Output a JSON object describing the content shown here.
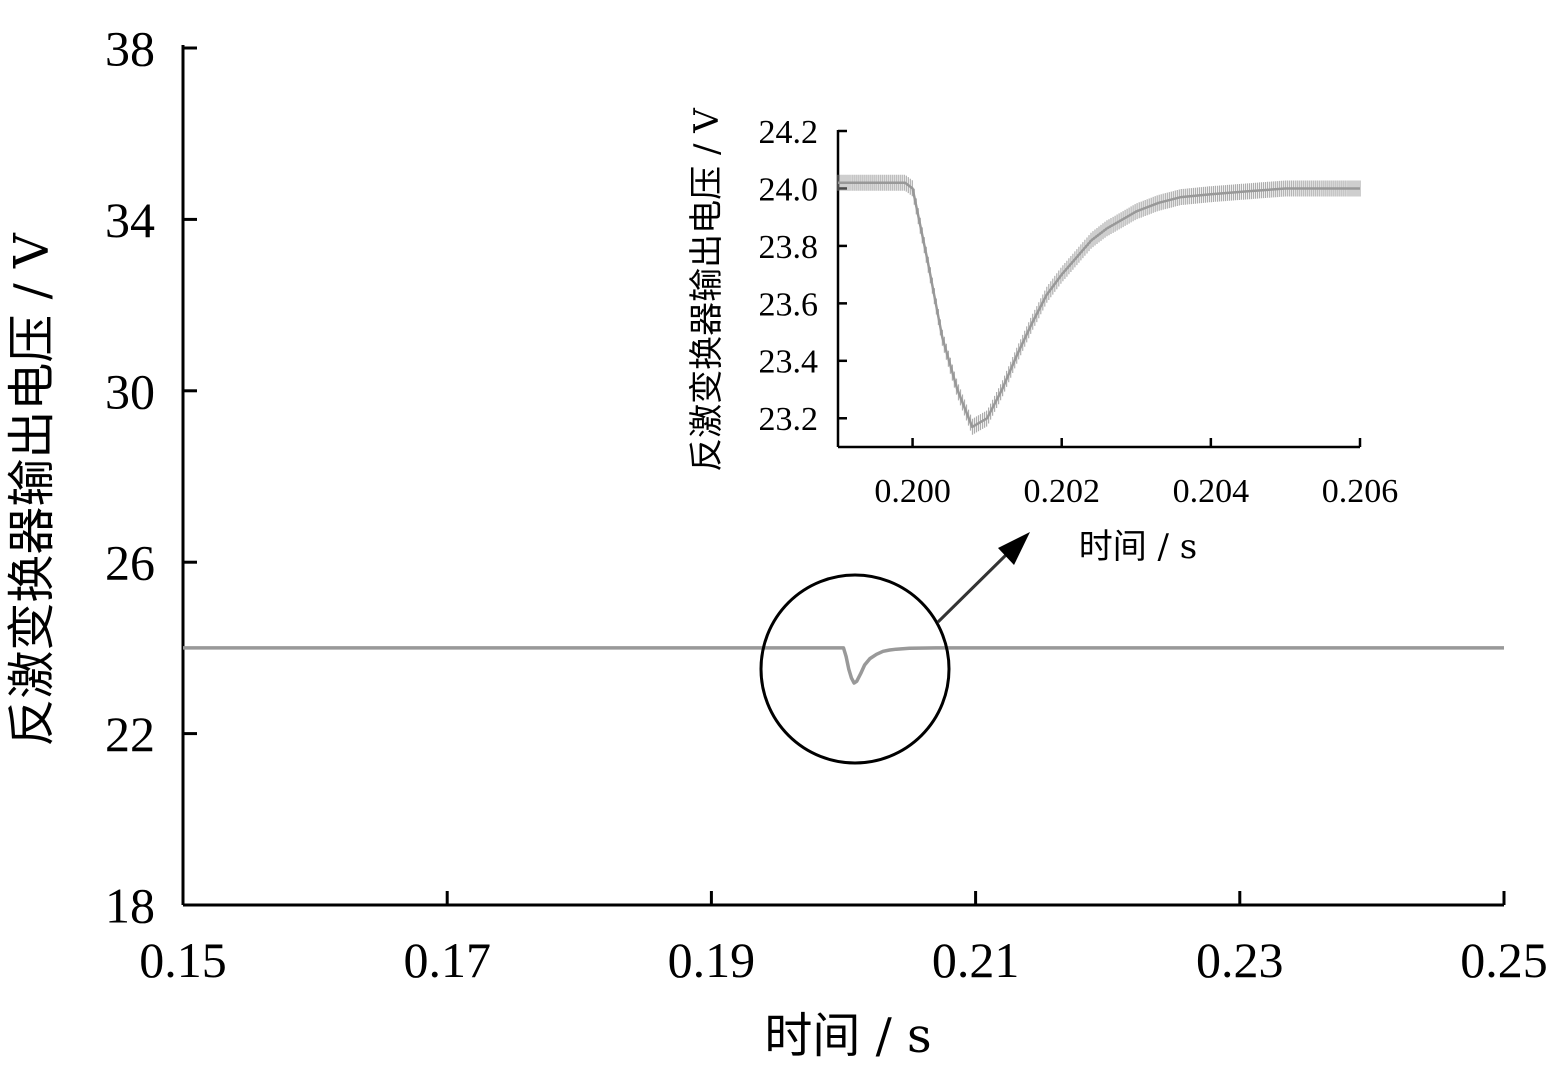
{
  "chart_data": [
    {
      "type": "line",
      "xlabel": "时间 / s",
      "ylabel": "反激变换器输出电压 / V",
      "xlim": [
        0.15,
        0.25
      ],
      "ylim": [
        18,
        38
      ],
      "x_ticks": [
        "0.15",
        "0.17",
        "0.19",
        "0.21",
        "0.23",
        "0.25"
      ],
      "y_ticks": [
        "18",
        "22",
        "26",
        "30",
        "34",
        "38"
      ],
      "series": [
        {
          "color": "#999999",
          "x": [
            0.15,
            0.195,
            0.2,
            0.2002,
            0.2004,
            0.2006,
            0.2008,
            0.201,
            0.2013,
            0.2016,
            0.202,
            0.2025,
            0.203,
            0.2035,
            0.204,
            0.205,
            0.207,
            0.21,
            0.22,
            0.25
          ],
          "y": [
            24.0,
            24.0,
            24.0,
            23.8,
            23.5,
            23.3,
            23.18,
            23.22,
            23.4,
            23.6,
            23.75,
            23.85,
            23.92,
            23.95,
            23.97,
            23.99,
            24.0,
            24.0,
            24.0,
            24.0
          ]
        }
      ],
      "annotations": [
        "zoom-circle",
        "arrow-to-inset"
      ]
    },
    {
      "type": "line",
      "xlabel": "时间 / s",
      "ylabel": "反激变换器输出电压 / V",
      "xlim": [
        0.199,
        0.206
      ],
      "ylim": [
        23.1,
        24.2
      ],
      "x_ticks": [
        "0.200",
        "0.202",
        "0.204",
        "0.206"
      ],
      "y_ticks": [
        "23.2",
        "23.4",
        "23.6",
        "23.8",
        "24.0",
        "24.2"
      ],
      "series": [
        {
          "color": "#999999",
          "x": [
            0.199,
            0.1999,
            0.2,
            0.2002,
            0.2004,
            0.2006,
            0.2008,
            0.201,
            0.2012,
            0.2014,
            0.2016,
            0.2018,
            0.202,
            0.2022,
            0.2024,
            0.2026,
            0.2028,
            0.203,
            0.2033,
            0.2036,
            0.204,
            0.2045,
            0.205,
            0.2055,
            0.206
          ],
          "y": [
            24.02,
            24.02,
            24.0,
            23.75,
            23.48,
            23.3,
            23.17,
            23.2,
            23.3,
            23.42,
            23.53,
            23.63,
            23.7,
            23.76,
            23.82,
            23.86,
            23.89,
            23.92,
            23.95,
            23.97,
            23.98,
            23.99,
            24.0,
            24.0,
            24.0
          ]
        }
      ]
    }
  ]
}
